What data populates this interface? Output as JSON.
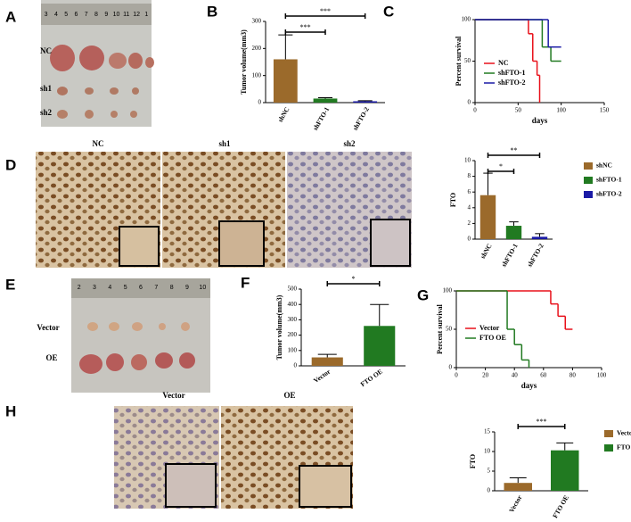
{
  "figure": {
    "panels": [
      "A",
      "B",
      "C",
      "D",
      "E",
      "F",
      "G",
      "H"
    ],
    "photo_a": {
      "ruler": [
        "3",
        "4",
        "5",
        "6",
        "7",
        "8",
        "9",
        "10",
        "11",
        "12",
        "1"
      ],
      "rows": [
        "NC",
        "sh1",
        "sh2"
      ]
    },
    "ihc_d": [
      "NC",
      "sh1",
      "sh2"
    ],
    "photo_e": {
      "ruler": [
        "2",
        "3",
        "4",
        "5",
        "6",
        "7",
        "8",
        "9",
        "10"
      ],
      "rows": [
        "Vector",
        "OE"
      ]
    },
    "ihc_h": [
      "Vector",
      "OE"
    ]
  },
  "chart_data": [
    {
      "type": "bar",
      "ylabel": "Tumor volume(mm3)",
      "categories": [
        "shNC",
        "shFTO-1",
        "shFTO-2"
      ],
      "values": [
        160,
        15,
        5
      ],
      "errors": [
        90,
        3,
        2
      ],
      "colors": [
        "#9b6a2b",
        "#217a21",
        "#1b1ba6"
      ],
      "ylim": [
        0,
        300
      ],
      "yticks": [
        0,
        100,
        200,
        300
      ],
      "annotations": [
        {
          "text": "***",
          "from": 0,
          "to": 2
        },
        {
          "text": "***",
          "from": 0,
          "to": 1
        }
      ]
    },
    {
      "type": "survival",
      "xlabel": "days",
      "ylabel": "Percent survival",
      "xlim": [
        0,
        150
      ],
      "xticks": [
        0,
        50,
        100,
        150
      ],
      "ylim": [
        0,
        100
      ],
      "yticks": [
        0,
        50,
        100
      ],
      "legend": "lower left",
      "series": [
        {
          "name": "NC",
          "color": "#e8101a",
          "x": [
            0,
            62,
            67,
            72,
            75
          ],
          "values": [
            100,
            83,
            50,
            33,
            0
          ]
        },
        {
          "name": "shFTO-1",
          "color": "#217a21",
          "x": [
            0,
            78,
            88,
            100
          ],
          "values": [
            100,
            67,
            50,
            50
          ]
        },
        {
          "name": "shFTO-2",
          "color": "#1b1ba6",
          "x": [
            0,
            85,
            100
          ],
          "values": [
            100,
            67,
            67
          ]
        }
      ]
    },
    {
      "type": "bar",
      "ylabel": "FTO",
      "categories": [
        "shNC",
        "shFTO-1",
        "shFTO-2"
      ],
      "values": [
        5.6,
        1.7,
        0.3
      ],
      "errors": [
        2.8,
        0.5,
        0.4
      ],
      "colors": [
        "#9b6a2b",
        "#217a21",
        "#1b1ba6"
      ],
      "ylim": [
        0,
        10
      ],
      "yticks": [
        0,
        2,
        4,
        6,
        8,
        10
      ],
      "legend": "right",
      "annotations": [
        {
          "text": "**",
          "from": 0,
          "to": 2
        },
        {
          "text": "*",
          "from": 0,
          "to": 1
        }
      ]
    },
    {
      "type": "bar",
      "ylabel": "Tumor volume(mm3)",
      "categories": [
        "Vector",
        "FTO OE"
      ],
      "values": [
        55,
        260
      ],
      "errors": [
        20,
        140
      ],
      "colors": [
        "#9b6a2b",
        "#217a21"
      ],
      "ylim": [
        0,
        500
      ],
      "yticks": [
        0,
        100,
        200,
        300,
        400,
        500
      ],
      "annotations": [
        {
          "text": "*",
          "from": 0,
          "to": 1
        }
      ]
    },
    {
      "type": "survival",
      "xlabel": "days",
      "ylabel": "Percent survival",
      "xlim": [
        0,
        100
      ],
      "xticks": [
        0,
        20,
        40,
        60,
        80,
        100
      ],
      "ylim": [
        0,
        100
      ],
      "yticks": [
        0,
        50,
        100
      ],
      "legend": "lower left",
      "series": [
        {
          "name": "Vector",
          "color": "#e8101a",
          "x": [
            0,
            65,
            70,
            75,
            80
          ],
          "values": [
            100,
            83,
            67,
            50,
            50
          ]
        },
        {
          "name": "FTO OE",
          "color": "#217a21",
          "x": [
            0,
            35,
            40,
            45,
            50
          ],
          "values": [
            100,
            50,
            30,
            10,
            0
          ]
        }
      ]
    },
    {
      "type": "bar",
      "ylabel": "FTO",
      "categories": [
        "Vector",
        "FTO OE"
      ],
      "values": [
        2,
        10.3
      ],
      "errors": [
        1.3,
        1.9
      ],
      "colors": [
        "#9b6a2b",
        "#217a21"
      ],
      "ylim": [
        0,
        15
      ],
      "yticks": [
        0,
        5,
        10,
        15
      ],
      "legend": "right",
      "annotations": [
        {
          "text": "***",
          "from": 0,
          "to": 1
        }
      ]
    }
  ]
}
